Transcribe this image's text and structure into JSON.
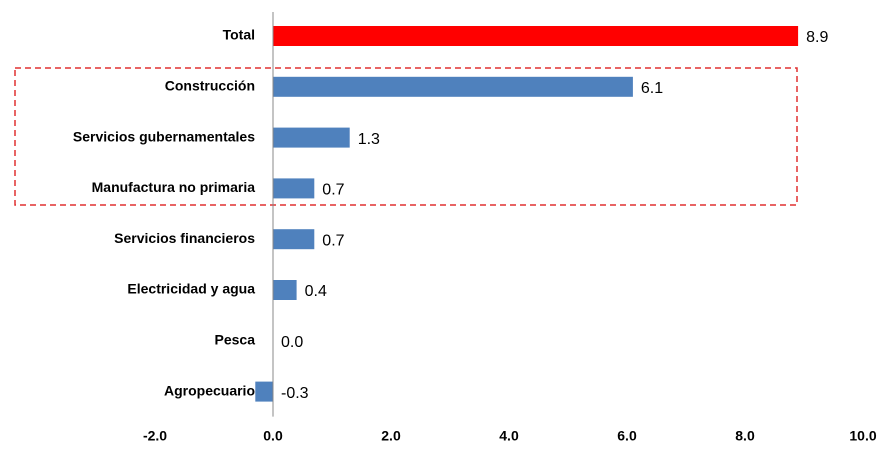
{
  "chart_data": {
    "type": "hbar",
    "categories": [
      "Total",
      "Construcción",
      "Servicios gubernamentales",
      "Manufactura no primaria",
      "Servicios financieros",
      "Electricidad y agua",
      "Pesca",
      "Agropecuario"
    ],
    "values": [
      8.9,
      6.1,
      1.3,
      0.7,
      0.7,
      0.4,
      0.0,
      -0.3
    ],
    "value_labels": [
      "8.9",
      "6.1",
      "1.3",
      "0.7",
      "0.7",
      "0.4",
      "0.0",
      "-0.3"
    ],
    "colors": [
      "#ff0000",
      "#4f81bd",
      "#4f81bd",
      "#4f81bd",
      "#4f81bd",
      "#4f81bd",
      "#4f81bd",
      "#4f81bd"
    ],
    "xlim": [
      -2,
      10
    ],
    "xticks": [
      {
        "value": -2,
        "label": "-2.0"
      },
      {
        "value": 0,
        "label": "0.0"
      },
      {
        "value": 2,
        "label": "2.0"
      },
      {
        "value": 4,
        "label": "4.0"
      },
      {
        "value": 6,
        "label": "6.0"
      },
      {
        "value": 8,
        "label": "8.0"
      },
      {
        "value": 10,
        "label": "10.0"
      }
    ],
    "grid": false
  }
}
